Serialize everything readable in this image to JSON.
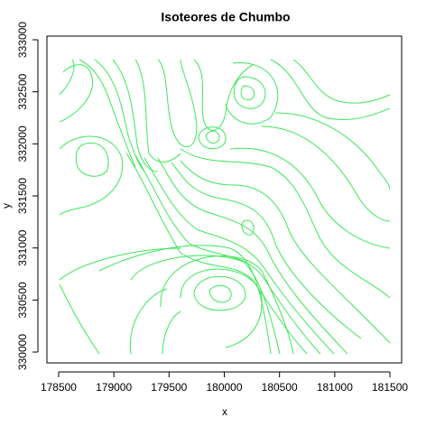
{
  "chart_data": {
    "type": "contour",
    "title": "Isoteores de Chumbo",
    "x_label": "x",
    "y_label": "y",
    "color": "#3ee65a",
    "xlim": [
      178394,
      181606
    ],
    "xticks": [
      178500,
      179000,
      179500,
      180000,
      180500,
      181000,
      181500
    ],
    "ylim": [
      329896,
      333035
    ],
    "yticks": [
      330000,
      330500,
      331000,
      331500,
      332000,
      332500,
      333000
    ]
  }
}
